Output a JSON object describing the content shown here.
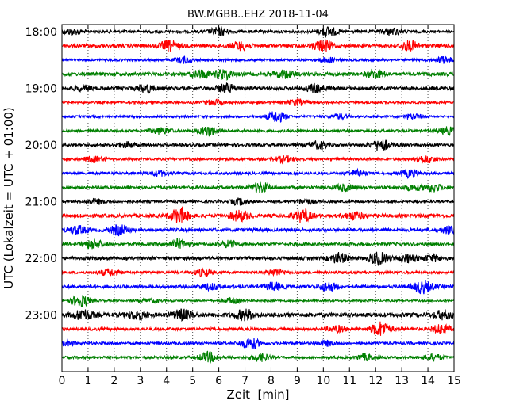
{
  "chart_data": {
    "type": "line",
    "title": "BW.MGBB..EHZ 2018-11-04",
    "xlabel": "Zeit  [min]",
    "ylabel": "UTC (Lokalzeit = UTC + 01:00)",
    "xlim": [
      0,
      15
    ],
    "x_ticks": [
      "0",
      "1",
      "2",
      "3",
      "4",
      "5",
      "6",
      "7",
      "8",
      "9",
      "10",
      "11",
      "12",
      "13",
      "14",
      "15"
    ],
    "y_ticks": [
      "18:00",
      "19:00",
      "20:00",
      "21:00",
      "22:00",
      "23:00"
    ],
    "trace_interval_min": 15,
    "grid": "vertical dotted",
    "series_colors": [
      "#000000",
      "#ff0000",
      "#0000ff",
      "#008000"
    ],
    "series": [
      {
        "start": "18:00",
        "color": "#000000",
        "amplitude": 0.45,
        "bursts": [
          [
            0.4,
            0.4
          ],
          [
            6.0,
            0.6
          ],
          [
            10.2,
            0.7
          ],
          [
            12.6,
            0.5
          ]
        ]
      },
      {
        "start": "18:15",
        "color": "#ff0000",
        "amplitude": 0.5,
        "bursts": [
          [
            4.1,
            0.8
          ],
          [
            6.8,
            0.6
          ],
          [
            10.0,
            0.9
          ],
          [
            13.3,
            0.7
          ]
        ]
      },
      {
        "start": "18:30",
        "color": "#0000ff",
        "amplitude": 0.35,
        "bursts": [
          [
            4.7,
            0.5
          ],
          [
            10.2,
            0.4
          ],
          [
            14.6,
            0.5
          ]
        ]
      },
      {
        "start": "18:45",
        "color": "#008000",
        "amplitude": 0.55,
        "bursts": [
          [
            5.3,
            0.6
          ],
          [
            6.2,
            0.8
          ],
          [
            8.5,
            0.6
          ],
          [
            12.0,
            0.6
          ]
        ]
      },
      {
        "start": "19:00",
        "color": "#000000",
        "amplitude": 0.5,
        "bursts": [
          [
            0.8,
            0.4
          ],
          [
            3.2,
            0.6
          ],
          [
            6.3,
            0.7
          ],
          [
            9.7,
            0.7
          ]
        ]
      },
      {
        "start": "19:15",
        "color": "#ff0000",
        "amplitude": 0.35,
        "bursts": [
          [
            5.8,
            0.4
          ],
          [
            9.0,
            0.5
          ]
        ]
      },
      {
        "start": "19:30",
        "color": "#0000ff",
        "amplitude": 0.35,
        "bursts": [
          [
            8.2,
            0.9
          ],
          [
            10.6,
            0.4
          ],
          [
            13.4,
            0.4
          ]
        ]
      },
      {
        "start": "19:45",
        "color": "#008000",
        "amplitude": 0.4,
        "bursts": [
          [
            3.8,
            0.5
          ],
          [
            5.6,
            0.8
          ],
          [
            14.8,
            0.6
          ]
        ]
      },
      {
        "start": "20:00",
        "color": "#000000",
        "amplitude": 0.45,
        "bursts": [
          [
            2.5,
            0.4
          ],
          [
            9.8,
            0.6
          ],
          [
            12.2,
            0.9
          ]
        ]
      },
      {
        "start": "20:15",
        "color": "#ff0000",
        "amplitude": 0.4,
        "bursts": [
          [
            1.2,
            0.4
          ],
          [
            8.5,
            0.5
          ],
          [
            13.9,
            0.6
          ]
        ]
      },
      {
        "start": "20:30",
        "color": "#0000ff",
        "amplitude": 0.4,
        "bursts": [
          [
            3.7,
            0.4
          ],
          [
            11.3,
            0.5
          ],
          [
            13.3,
            0.6
          ]
        ]
      },
      {
        "start": "20:45",
        "color": "#008000",
        "amplitude": 0.45,
        "bursts": [
          [
            7.6,
            0.8
          ],
          [
            10.8,
            0.5
          ],
          [
            13.4,
            0.4
          ],
          [
            14.2,
            0.6
          ]
        ]
      },
      {
        "start": "21:00",
        "color": "#000000",
        "amplitude": 0.35,
        "bursts": [
          [
            1.3,
            0.4
          ],
          [
            6.8,
            0.5
          ],
          [
            9.3,
            0.4
          ]
        ]
      },
      {
        "start": "21:15",
        "color": "#ff0000",
        "amplitude": 0.55,
        "bursts": [
          [
            4.5,
            1.2
          ],
          [
            6.8,
            0.8
          ],
          [
            9.2,
            1.0
          ],
          [
            11.2,
            0.6
          ]
        ]
      },
      {
        "start": "21:30",
        "color": "#0000ff",
        "amplitude": 0.5,
        "bursts": [
          [
            0.6,
            0.6
          ],
          [
            2.2,
            0.8
          ],
          [
            14.8,
            0.5
          ]
        ]
      },
      {
        "start": "21:45",
        "color": "#008000",
        "amplitude": 0.45,
        "bursts": [
          [
            1.2,
            0.8
          ],
          [
            4.5,
            0.7
          ],
          [
            6.4,
            0.5
          ]
        ]
      },
      {
        "start": "22:00",
        "color": "#000000",
        "amplitude": 0.5,
        "bursts": [
          [
            10.6,
            0.8
          ],
          [
            12.1,
            1.0
          ],
          [
            13.2,
            0.6
          ],
          [
            14.2,
            0.5
          ]
        ]
      },
      {
        "start": "22:15",
        "color": "#ff0000",
        "amplitude": 0.4,
        "bursts": [
          [
            1.8,
            0.5
          ],
          [
            5.4,
            0.5
          ],
          [
            8.2,
            0.5
          ]
        ]
      },
      {
        "start": "22:30",
        "color": "#0000ff",
        "amplitude": 0.5,
        "bursts": [
          [
            5.7,
            0.4
          ],
          [
            8.1,
            0.6
          ],
          [
            10.2,
            0.7
          ],
          [
            13.8,
            1.0
          ]
        ]
      },
      {
        "start": "22:45",
        "color": "#008000",
        "amplitude": 0.3,
        "bursts": [
          [
            0.7,
            1.0
          ],
          [
            3.4,
            0.3
          ],
          [
            6.5,
            0.4
          ]
        ]
      },
      {
        "start": "23:00",
        "color": "#000000",
        "amplitude": 0.65,
        "bursts": [
          [
            0.8,
            0.8
          ],
          [
            2.9,
            0.6
          ],
          [
            4.6,
            0.8
          ],
          [
            7.0,
            0.8
          ],
          [
            14.6,
            0.6
          ]
        ]
      },
      {
        "start": "23:15",
        "color": "#ff0000",
        "amplitude": 0.45,
        "bursts": [
          [
            10.5,
            0.5
          ],
          [
            12.2,
            1.2
          ],
          [
            14.5,
            0.7
          ]
        ]
      },
      {
        "start": "23:30",
        "color": "#0000ff",
        "amplitude": 0.4,
        "bursts": [
          [
            0.2,
            0.3
          ],
          [
            7.2,
            0.9
          ],
          [
            10.1,
            0.4
          ]
        ]
      },
      {
        "start": "23:45",
        "color": "#008000",
        "amplitude": 0.4,
        "bursts": [
          [
            5.6,
            0.8
          ],
          [
            7.6,
            0.6
          ],
          [
            11.6,
            0.5
          ],
          [
            14.2,
            0.5
          ]
        ]
      }
    ]
  }
}
